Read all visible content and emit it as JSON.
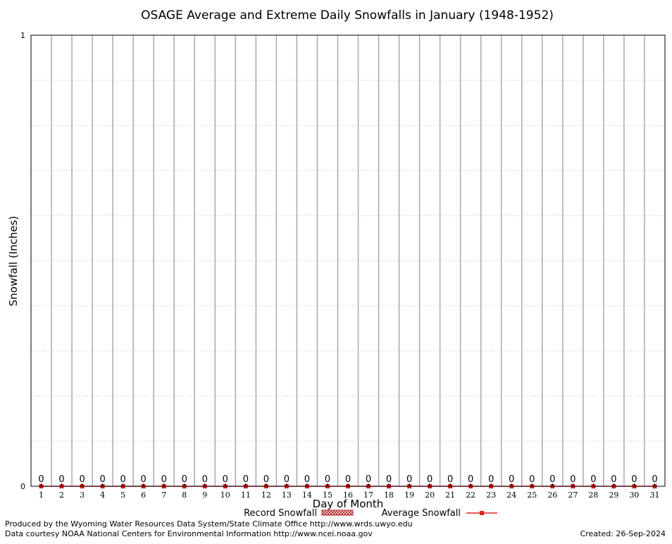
{
  "chart_data": {
    "type": "bar",
    "title": "OSAGE Average and Extreme Daily Snowfalls in January (1948-1952)",
    "xlabel": "Day of Month",
    "ylabel": "Snowfall (Inches)",
    "ylim": [
      0,
      1
    ],
    "y_ticks": [
      "0",
      "1"
    ],
    "categories": [
      "1",
      "2",
      "3",
      "4",
      "5",
      "6",
      "7",
      "8",
      "9",
      "10",
      "11",
      "12",
      "13",
      "14",
      "15",
      "16",
      "17",
      "18",
      "19",
      "20",
      "21",
      "22",
      "23",
      "24",
      "25",
      "26",
      "27",
      "28",
      "29",
      "30",
      "31"
    ],
    "series": [
      {
        "name": "Record Snowfall",
        "values": [
          0,
          0,
          0,
          0,
          0,
          0,
          0,
          0,
          0,
          0,
          0,
          0,
          0,
          0,
          0,
          0,
          0,
          0,
          0,
          0,
          0,
          0,
          0,
          0,
          0,
          0,
          0,
          0,
          0,
          0,
          0
        ]
      },
      {
        "name": "Average Snowfall",
        "values": [
          0,
          0,
          0,
          0,
          0,
          0,
          0,
          0,
          0,
          0,
          0,
          0,
          0,
          0,
          0,
          0,
          0,
          0,
          0,
          0,
          0,
          0,
          0,
          0,
          0,
          0,
          0,
          0,
          0,
          0,
          0
        ]
      }
    ],
    "data_labels": [
      "0",
      "0",
      "0",
      "0",
      "0",
      "0",
      "0",
      "0",
      "0",
      "0",
      "0",
      "0",
      "0",
      "0",
      "0",
      "0",
      "0",
      "0",
      "0",
      "0",
      "0",
      "0",
      "0",
      "0",
      "0",
      "0",
      "0",
      "0",
      "0",
      "0",
      "0"
    ],
    "grid": true,
    "legend_position": "bottom-center",
    "colors": {
      "record": "#b22222",
      "average": "#dd2222",
      "grid": "#aaaaaa",
      "minor_grid": "#bbbbbb"
    }
  },
  "footer": {
    "line1": "Produced by the Wyoming Water Resources Data System/State Climate Office http://www.wrds.uwyo.edu",
    "line2": "Data courtesy NOAA National Centers for Environmental Information http://www.ncei.noaa.gov",
    "created": "Created:  26-Sep-2024"
  }
}
